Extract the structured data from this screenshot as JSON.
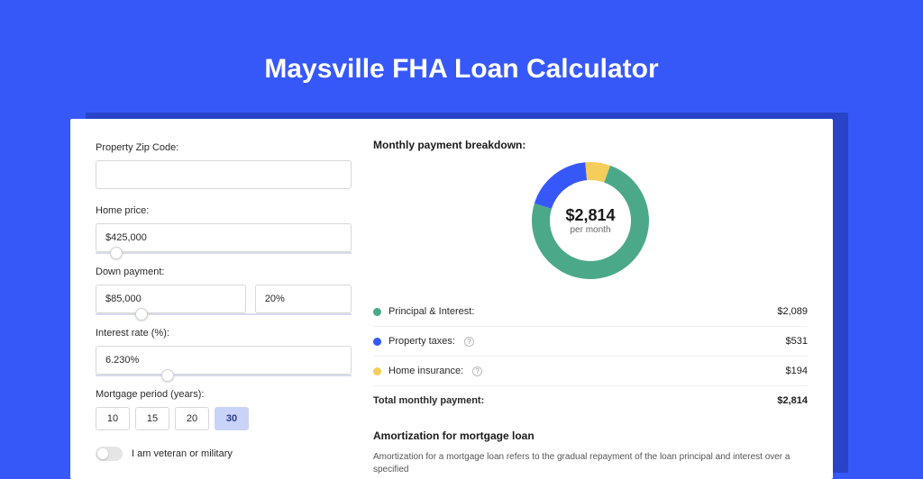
{
  "page": {
    "title": "Maysville FHA Loan Calculator",
    "background_color": "#3758f9",
    "card_shadow_color": "#2843c7",
    "card_bg": "#ffffff"
  },
  "form": {
    "zip": {
      "label": "Property Zip Code:",
      "value": ""
    },
    "home_price": {
      "label": "Home price:",
      "value": "$425,000",
      "slider_pos_pct": 8
    },
    "down_payment": {
      "label": "Down payment:",
      "value": "$85,000",
      "percent": "20%",
      "slider_pos_pct": 18
    },
    "interest": {
      "label": "Interest rate (%):",
      "value": "6.230%",
      "slider_pos_pct": 28
    },
    "period": {
      "label": "Mortgage period (years):",
      "options": [
        "10",
        "15",
        "20",
        "30"
      ],
      "selected": "30"
    },
    "veteran": {
      "label": "I am veteran or military",
      "checked": false
    }
  },
  "breakdown": {
    "title": "Monthly payment breakdown:",
    "donut": {
      "value": "$2,814",
      "label": "per month",
      "segments": [
        {
          "name": "Principal & Interest",
          "pct": 74.2,
          "color": "#4ba98a"
        },
        {
          "name": "Property taxes",
          "pct": 18.9,
          "color": "#3758f9"
        },
        {
          "name": "Home insurance",
          "pct": 6.9,
          "color": "#f5cd5b"
        }
      ],
      "ring_thickness": 20,
      "size": 130
    },
    "rows": [
      {
        "label": "Principal & Interest:",
        "value": "$2,089",
        "color": "#4ba98a",
        "info": false
      },
      {
        "label": "Property taxes:",
        "value": "$531",
        "color": "#3758f9",
        "info": true
      },
      {
        "label": "Home insurance:",
        "value": "$194",
        "color": "#f5cd5b",
        "info": true
      }
    ],
    "total": {
      "label": "Total monthly payment:",
      "value": "$2,814"
    }
  },
  "amortization": {
    "title": "Amortization for mortgage loan",
    "text": "Amortization for a mortgage loan refers to the gradual repayment of the loan principal and interest over a specified"
  }
}
